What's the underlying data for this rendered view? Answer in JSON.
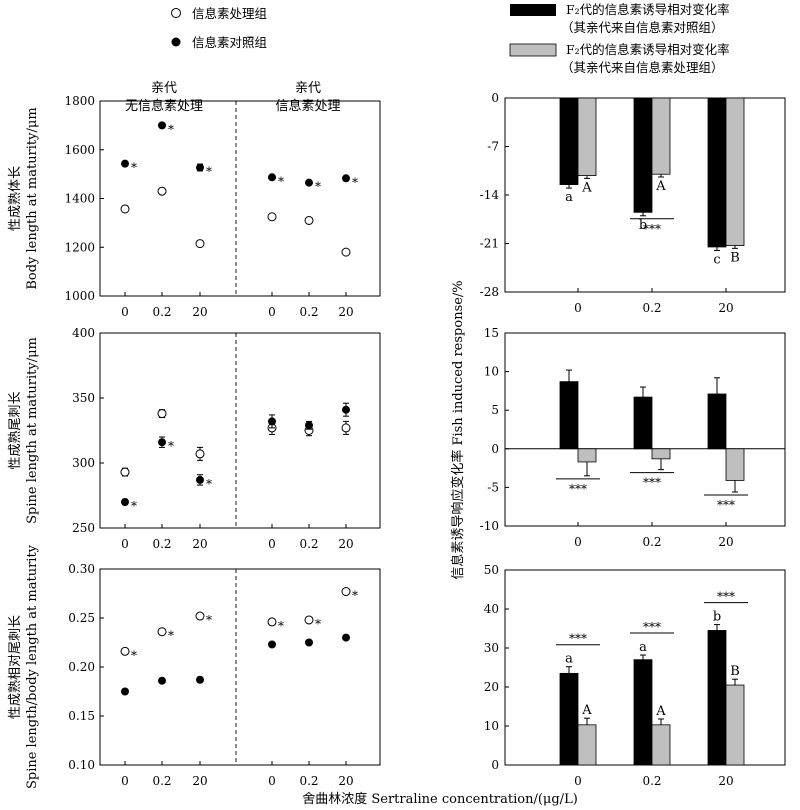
{
  "legend_left": [
    {
      "label": "信息素处理组",
      "symbol": "open-circle"
    },
    {
      "label": "信息素对照组",
      "symbol": "filled-circle"
    }
  ],
  "legend_right": [
    {
      "line1": "F₂代的信息素诱导相对变化率",
      "line2": "（其亲代来自信息素对照组）",
      "color": "#000000"
    },
    {
      "line1": "F₂代的信息素诱导相对变化率",
      "line2": "（其亲代来自信息素处理组）",
      "color": "#bfbfbf"
    }
  ],
  "x_axis_title": "舍曲林浓度 Sertraline concentration/(μg/L)",
  "right_y_axis_title": "信息素诱导响应变化率 Fish induced response/%",
  "star": "*",
  "colors": {
    "control": "#000000",
    "treated": "#bfbfbf"
  },
  "chart_data": [
    {
      "type": "scatter",
      "panel": "left-top",
      "ylabel_cn": "性成熟体长",
      "ylabel_en": "Body length at maturity/μm",
      "ylim": [
        1000,
        1800
      ],
      "yticks": [
        "1000",
        "1200",
        "1400",
        "1600",
        "1800"
      ],
      "group_labels": [
        {
          "line1": "亲代",
          "line2": "无信息素处理"
        },
        {
          "line1": "亲代",
          "line2": "信息素处理"
        }
      ],
      "categories": [
        "0",
        "0.2",
        "20"
      ],
      "groups": [
        {
          "treated": [
            1357,
            1430,
            1215
          ],
          "control": [
            1543,
            1700,
            1527
          ],
          "control_err": [
            0,
            0,
            14
          ],
          "control_sig": [
            true,
            true,
            true
          ],
          "treated_sig": [
            false,
            false,
            false
          ]
        },
        {
          "treated": [
            1325,
            1310,
            1180
          ],
          "control": [
            1487,
            1465,
            1483
          ],
          "control_err": [
            0,
            0,
            0
          ],
          "control_sig": [
            true,
            true,
            true
          ],
          "treated_sig": [
            false,
            false,
            false
          ]
        }
      ]
    },
    {
      "type": "scatter",
      "panel": "left-middle",
      "ylabel_cn": "性成熟尾刺长",
      "ylabel_en": "Spine length at maturity/μm",
      "ylim": [
        250,
        400
      ],
      "yticks": [
        "250",
        "300",
        "350",
        "400"
      ],
      "categories": [
        "0",
        "0.2",
        "20"
      ],
      "groups": [
        {
          "treated": [
            293,
            338,
            307
          ],
          "treated_err": [
            3,
            3,
            5
          ],
          "control": [
            270,
            316,
            287
          ],
          "control_err": [
            2,
            4,
            4
          ],
          "control_sig": [
            true,
            true,
            true
          ],
          "treated_sig": [
            false,
            false,
            false
          ]
        },
        {
          "treated": [
            327,
            325,
            327
          ],
          "treated_err": [
            5,
            4,
            5
          ],
          "control": [
            332,
            329,
            341
          ],
          "control_err": [
            5,
            3,
            5
          ],
          "control_sig": [
            false,
            false,
            false
          ],
          "treated_sig": [
            false,
            false,
            false
          ]
        }
      ]
    },
    {
      "type": "scatter",
      "panel": "left-bottom",
      "ylabel_cn": "性成熟相对尾刺长",
      "ylabel_en": "Spine length/body length at maturity",
      "ylim": [
        0.1,
        0.3
      ],
      "yticks": [
        "0.10",
        "0.15",
        "0.20",
        "0.25",
        "0.30"
      ],
      "categories": [
        "0",
        "0.2",
        "20"
      ],
      "groups": [
        {
          "treated": [
            0.216,
            0.236,
            0.252
          ],
          "control": [
            0.175,
            0.186,
            0.187
          ],
          "control_sig": [
            false,
            false,
            false
          ],
          "treated_sig": [
            true,
            true,
            true
          ]
        },
        {
          "treated": [
            0.246,
            0.248,
            0.277
          ],
          "control": [
            0.223,
            0.225,
            0.23
          ],
          "control_sig": [
            false,
            false,
            false
          ],
          "treated_sig": [
            true,
            true,
            true
          ]
        }
      ]
    },
    {
      "type": "bar",
      "panel": "right-top",
      "ylim": [
        -28,
        0
      ],
      "yticks": [
        "0",
        "-7",
        "-14",
        "-21",
        "-28"
      ],
      "categories": [
        "0",
        "0.2",
        "20"
      ],
      "series": [
        {
          "values": [
            -12.5,
            -16.5,
            -21.5
          ],
          "errors": [
            0.5,
            0.5,
            0.5
          ],
          "letters": [
            "a",
            "b",
            "c"
          ]
        },
        {
          "values": [
            -11.2,
            -11.0,
            -21.3
          ],
          "errors": [
            0.4,
            0.4,
            0.4
          ],
          "letters": [
            "A",
            "A",
            "B"
          ]
        }
      ],
      "significance": [
        {
          "category": 1,
          "label": "***"
        }
      ]
    },
    {
      "type": "bar",
      "panel": "right-middle",
      "ylim": [
        -10,
        15
      ],
      "yticks": [
        "-10",
        "-5",
        "0",
        "5",
        "10",
        "15"
      ],
      "categories": [
        "0",
        "0.2",
        "20"
      ],
      "series": [
        {
          "values": [
            8.7,
            6.7,
            7.1
          ],
          "errors": [
            1.5,
            1.3,
            2.1
          ],
          "letters": [
            "",
            "",
            ""
          ]
        },
        {
          "values": [
            -1.7,
            -1.3,
            -4.1
          ],
          "errors": [
            1.8,
            1.4,
            1.5
          ],
          "letters": [
            "",
            "",
            ""
          ]
        }
      ],
      "significance": [
        {
          "category": 0,
          "label": "***"
        },
        {
          "category": 1,
          "label": "***"
        },
        {
          "category": 2,
          "label": "***"
        }
      ]
    },
    {
      "type": "bar",
      "panel": "right-bottom",
      "ylim": [
        0,
        50
      ],
      "yticks": [
        "0",
        "10",
        "20",
        "30",
        "40",
        "50"
      ],
      "categories": [
        "0",
        "0.2",
        "20"
      ],
      "series": [
        {
          "values": [
            23.5,
            27.0,
            34.5
          ],
          "errors": [
            1.7,
            1.2,
            1.5
          ],
          "letters": [
            "a",
            "a",
            "b"
          ]
        },
        {
          "values": [
            10.3,
            10.3,
            20.5
          ],
          "errors": [
            1.7,
            1.5,
            1.5
          ],
          "letters": [
            "A",
            "A",
            "B"
          ]
        }
      ],
      "significance": [
        {
          "category": 0,
          "label": "***"
        },
        {
          "category": 1,
          "label": "***"
        },
        {
          "category": 2,
          "label": "***"
        }
      ]
    }
  ]
}
